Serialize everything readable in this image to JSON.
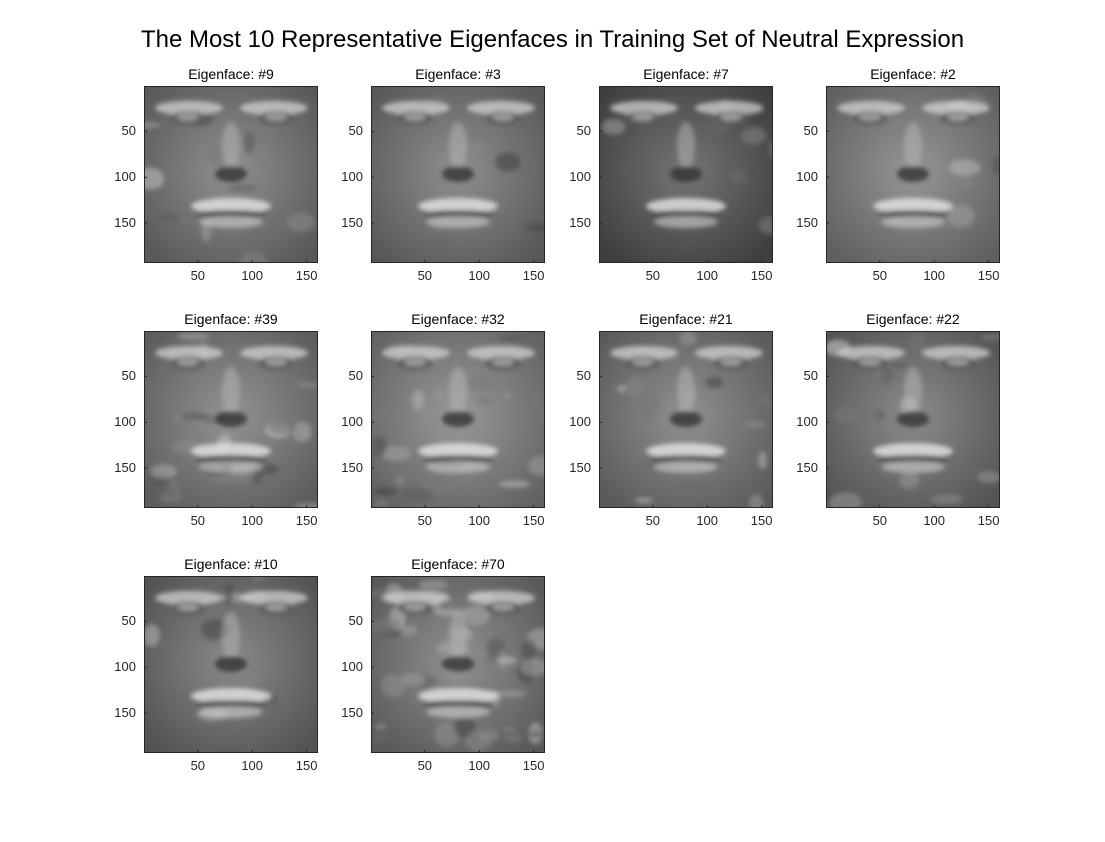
{
  "chart_data": {
    "type": "image-grid",
    "title": "The Most 10 Representative Eigenfaces in Training Set of Neutral Expression",
    "colormap": "gray",
    "xlim": [
      0.5,
      160.5
    ],
    "ylim": [
      0.5,
      193.5
    ],
    "xticks": [
      50,
      100,
      150
    ],
    "yticks": [
      50,
      100,
      150
    ],
    "panels": [
      {
        "title": "Eigenface: #9",
        "index": 9
      },
      {
        "title": "Eigenface: #3",
        "index": 3
      },
      {
        "title": "Eigenface: #7",
        "index": 7
      },
      {
        "title": "Eigenface: #2",
        "index": 2
      },
      {
        "title": "Eigenface: #39",
        "index": 39
      },
      {
        "title": "Eigenface: #32",
        "index": 32
      },
      {
        "title": "Eigenface: #21",
        "index": 21
      },
      {
        "title": "Eigenface: #22",
        "index": 22
      },
      {
        "title": "Eigenface: #10",
        "index": 10
      },
      {
        "title": "Eigenface: #70",
        "index": 70
      }
    ]
  }
}
